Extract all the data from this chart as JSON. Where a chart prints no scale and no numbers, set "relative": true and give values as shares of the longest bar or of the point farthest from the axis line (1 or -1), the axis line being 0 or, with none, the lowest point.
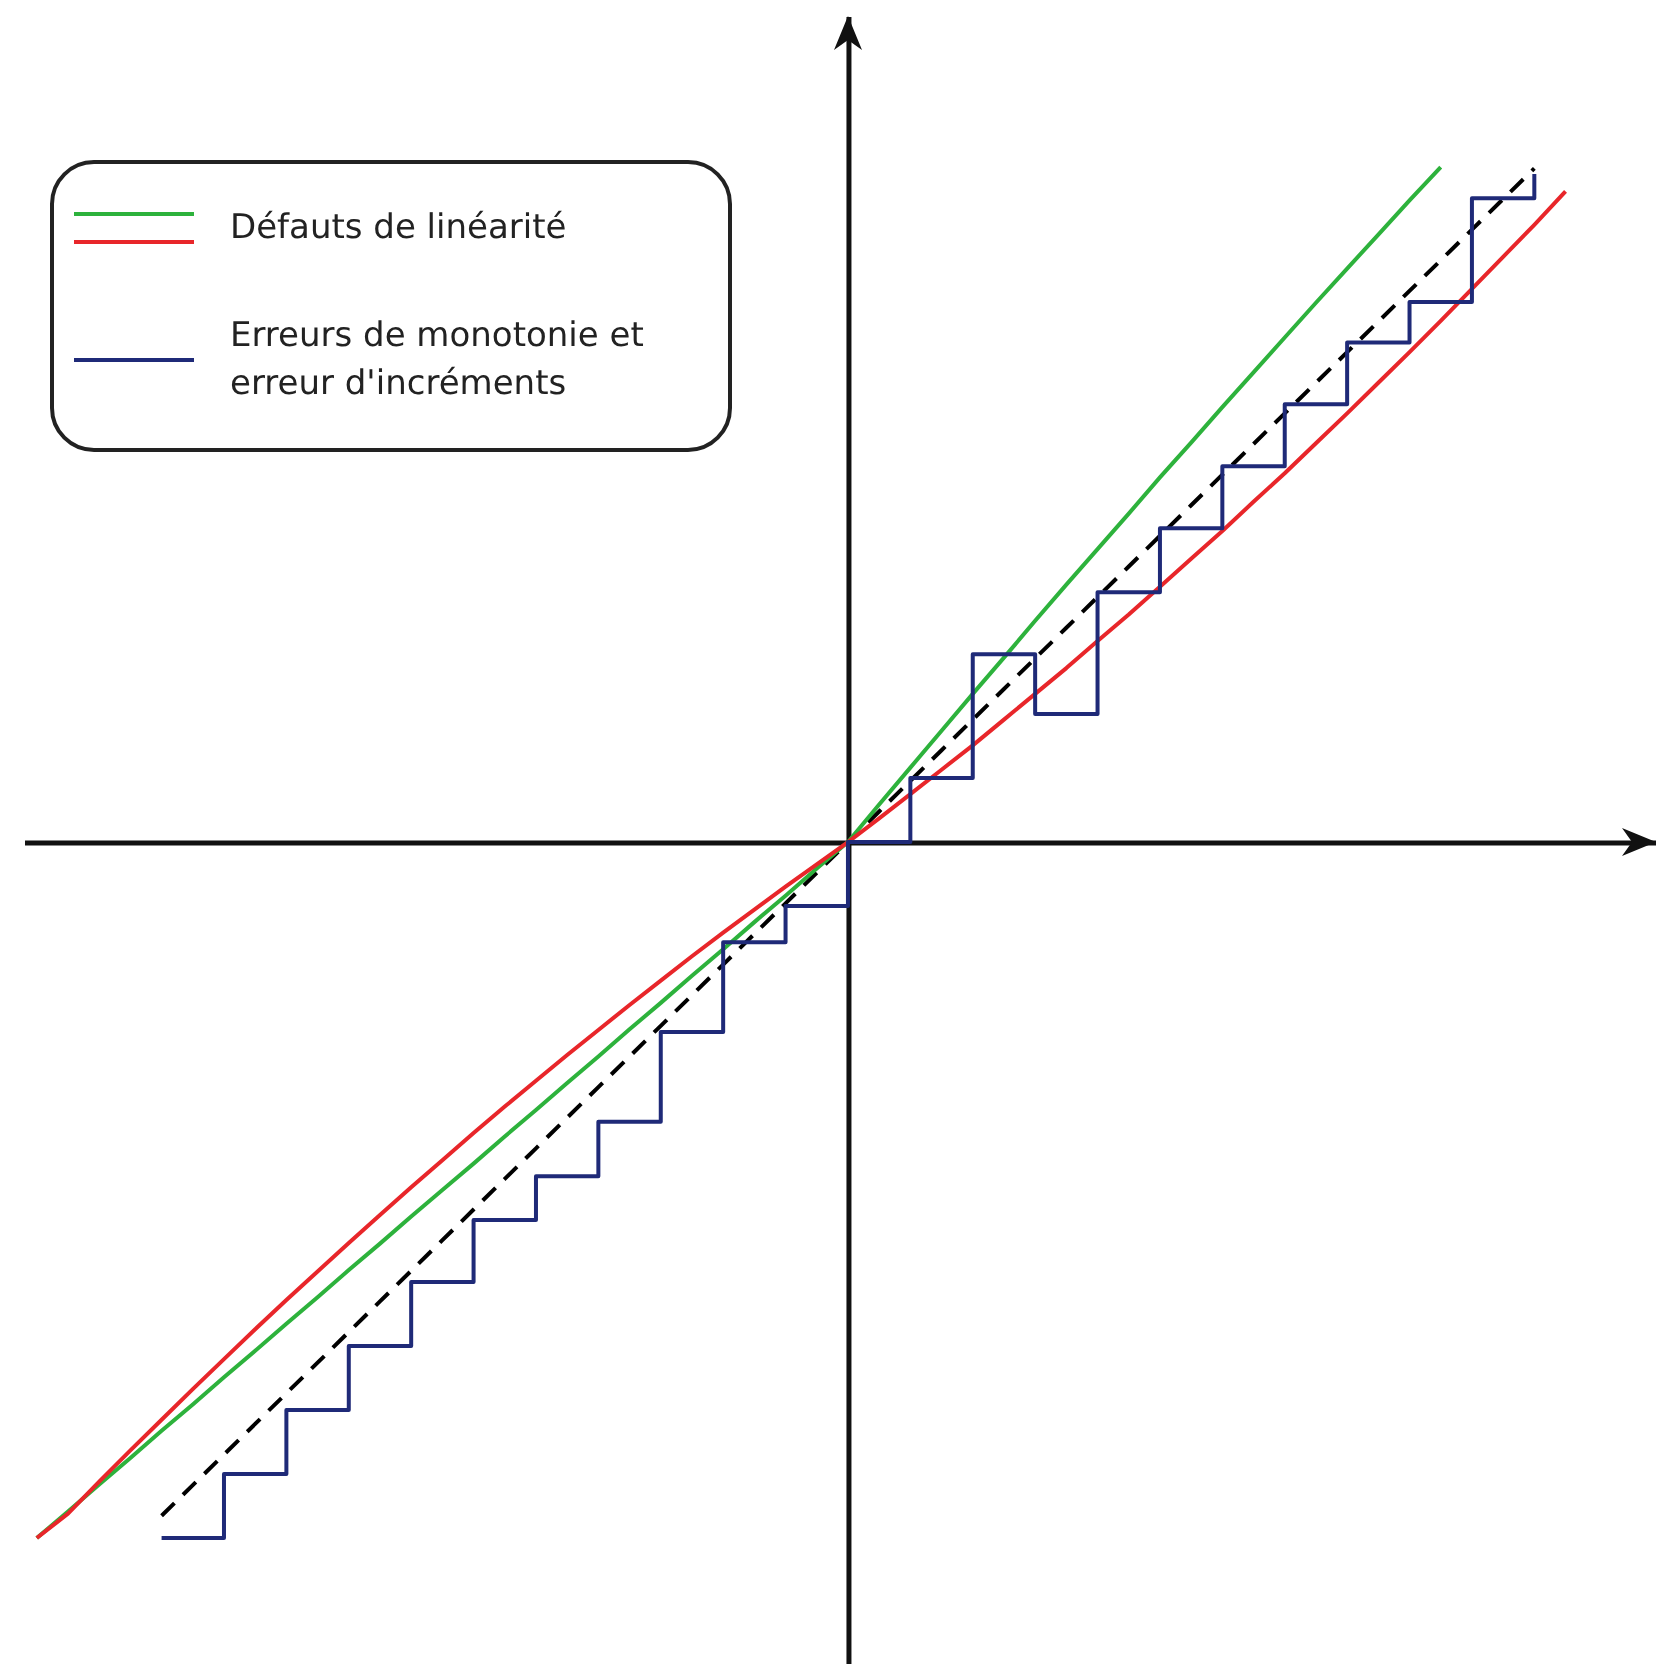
{
  "chart_data": {
    "type": "line",
    "relative": true,
    "legend": "top left",
    "categories": [
      null,
      null,
      null,
      null,
      null,
      null,
      null,
      null,
      null,
      null,
      null,
      null,
      null,
      null,
      null,
      null,
      null,
      null,
      null,
      null,
      null,
      null,
      null,
      null,
      null,
      null,
      null,
      null,
      null,
      null,
      null,
      null,
      null,
      null,
      null,
      null,
      null,
      null,
      null,
      null,
      null,
      null,
      null,
      null,
      null,
      null,
      null,
      null,
      null,
      null,
      null
    ],
    "series": [
      {
        "color": "#000000",
        "line_style": "dashed",
        "values": [
          null,
          null,
          null,
          null,
          -0.968,
          -0.924,
          -0.88,
          -0.836,
          -0.792,
          -0.748,
          -0.704,
          -0.66,
          -0.616,
          -0.572,
          -0.528,
          -0.484,
          -0.44,
          -0.396,
          -0.352,
          -0.308,
          -0.264,
          -0.22,
          -0.176,
          -0.132,
          -0.088,
          -0.044,
          0,
          0.044,
          0.088,
          0.132,
          0.176,
          0.22,
          0.264,
          0.308,
          0.352,
          0.396,
          0.44,
          0.484,
          0.528,
          0.572,
          0.616,
          0.66,
          0.704,
          0.748,
          0.792,
          0.836,
          0.88,
          0.924,
          0.968,
          null,
          null
        ]
      },
      {
        "name": "Défauts de linéarité",
        "color": "#2db23c",
        "values": [
          -1.0,
          -0.962,
          -0.923,
          -0.885,
          -0.846,
          -0.808,
          -0.769,
          -0.731,
          -0.692,
          -0.654,
          -0.615,
          -0.577,
          -0.538,
          -0.5,
          -0.462,
          -0.423,
          -0.385,
          -0.346,
          -0.308,
          -0.269,
          -0.231,
          -0.192,
          -0.154,
          -0.115,
          -0.077,
          -0.038,
          0,
          0.054,
          0.107,
          0.16,
          0.213,
          0.265,
          0.318,
          0.37,
          0.421,
          0.472,
          0.524,
          0.574,
          0.625,
          0.675,
          0.725,
          0.775,
          0.824,
          0.873,
          0.922,
          0.97,
          null,
          null,
          null,
          null,
          null
        ]
      },
      {
        "color": "#e8262a",
        "values": [
          -1.0,
          -0.965,
          -0.919,
          -0.874,
          -0.83,
          -0.786,
          -0.743,
          -0.7,
          -0.658,
          -0.617,
          -0.576,
          -0.536,
          -0.496,
          -0.457,
          -0.418,
          -0.38,
          -0.343,
          -0.306,
          -0.27,
          -0.234,
          -0.199,
          -0.164,
          -0.13,
          -0.097,
          -0.064,
          -0.032,
          0,
          0.034,
          0.069,
          0.104,
          0.139,
          0.176,
          0.213,
          0.25,
          0.289,
          0.327,
          0.367,
          0.407,
          0.447,
          0.489,
          0.53,
          0.573,
          0.616,
          0.66,
          0.704,
          0.749,
          0.795,
          0.841,
          0.887,
          0.935,
          null
        ]
      },
      {
        "name": "Erreurs de monotonie et erreur d'incréments",
        "type": "step",
        "color": "#1f2a78",
        "values": [
          null,
          null,
          null,
          null,
          -1.0,
          -1.0,
          -0.908,
          -0.908,
          -0.816,
          -0.816,
          -0.724,
          -0.724,
          -0.632,
          -0.632,
          -0.543,
          -0.543,
          -0.48,
          -0.48,
          -0.402,
          -0.402,
          -0.273,
          -0.273,
          -0.144,
          -0.144,
          -0.092,
          -0.092,
          0,
          0,
          0.092,
          0.092,
          0.27,
          0.27,
          0.184,
          0.184,
          0.359,
          0.359,
          0.451,
          0.451,
          0.54,
          0.54,
          0.629,
          0.629,
          0.718,
          0.718,
          0.776,
          0.776,
          0.925,
          0.925,
          0.96,
          null,
          null
        ]
      }
    ]
  }
}
